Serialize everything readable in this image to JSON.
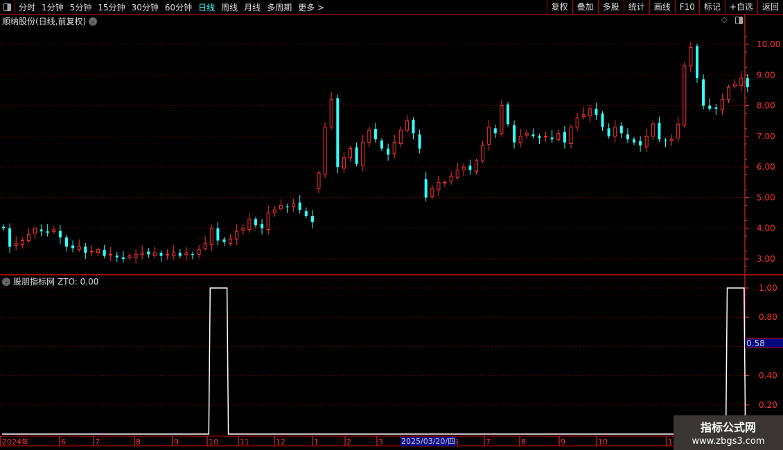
{
  "toolbar": {
    "periods": [
      "分时",
      "1分钟",
      "5分钟",
      "15分钟",
      "30分钟",
      "60分钟",
      "日线",
      "周线",
      "月线",
      "多周期",
      "更多 >"
    ],
    "active_period": "日线",
    "buttons": [
      "复权",
      "叠加",
      "多股",
      "统计",
      "画线",
      "F10",
      "标记",
      "+自选",
      "返回"
    ]
  },
  "chart_title": "顺纳股份(日线,前复权)",
  "indicator": {
    "name": "股朋指标网",
    "label": "ZTO: 0.00",
    "cursor_value": "0.58"
  },
  "date_cursor": "2025/03/20/四",
  "watermark": {
    "line1": "指标公式网",
    "line2": "www.zbgs3.com"
  },
  "colors": {
    "up": "#ff3333",
    "down": "#33ffff",
    "axis": "#ff3333",
    "grid": "#8b0000",
    "cursor_bg": "#00087a"
  },
  "chart_data": [
    {
      "type": "candlestick",
      "ylim": [
        2.6,
        10.6
      ],
      "yticks": [
        "3.00",
        "4.00",
        "5.00",
        "6.00",
        "7.00",
        "8.00",
        "9.00",
        "10.00"
      ],
      "closes": [
        4.0,
        3.4,
        3.5,
        3.6,
        3.8,
        4.0,
        3.9,
        3.85,
        3.95,
        3.7,
        3.4,
        3.35,
        3.4,
        3.2,
        3.25,
        3.3,
        3.1,
        3.15,
        3.05,
        3.0,
        3.1,
        3.15,
        3.2,
        3.15,
        3.2,
        3.1,
        3.15,
        3.2,
        3.1,
        3.2,
        3.15,
        3.3,
        3.5,
        4.0,
        3.6,
        3.55,
        3.65,
        3.9,
        4.0,
        4.3,
        4.1,
        4.0,
        4.5,
        4.6,
        4.75,
        4.7,
        4.8,
        4.6,
        4.4,
        4.2,
        5.8,
        7.3,
        8.2,
        6.0,
        6.3,
        6.6,
        6.1,
        6.8,
        7.2,
        6.9,
        6.6,
        6.4,
        6.8,
        7.2,
        7.5,
        7.1,
        6.6,
        5.0,
        5.3,
        5.5,
        5.5,
        5.7,
        5.9,
        6.0,
        5.9,
        6.2,
        6.7,
        7.3,
        7.1,
        8.0,
        7.4,
        6.8,
        7.0,
        7.1,
        7.0,
        6.95,
        7.0,
        6.9,
        7.1,
        6.8,
        7.3,
        7.6,
        7.7,
        7.9,
        7.7,
        7.3,
        7.0,
        7.3,
        7.1,
        6.9,
        6.8,
        6.7,
        7.0,
        7.4,
        6.9,
        6.85,
        6.9,
        7.4,
        9.3,
        9.9,
        8.9,
        8.0,
        7.9,
        7.9,
        8.2,
        8.6,
        8.7,
        8.9,
        8.6
      ],
      "xticks": [
        "2024年",
        "6",
        "7",
        "8",
        "9",
        "10",
        "11",
        "12",
        "1",
        "2",
        "3",
        "6",
        "7",
        "8",
        "9",
        "10",
        "11"
      ]
    },
    {
      "type": "line",
      "name": "ZTO",
      "ylim": [
        0,
        1.05
      ],
      "yticks": [
        "0.20",
        "0.40",
        "0.60",
        "0.80",
        "1.00"
      ],
      "values_nonzero_indices": [
        33,
        34,
        35,
        115,
        116,
        117
      ],
      "value_when_signal": 1.0
    }
  ]
}
